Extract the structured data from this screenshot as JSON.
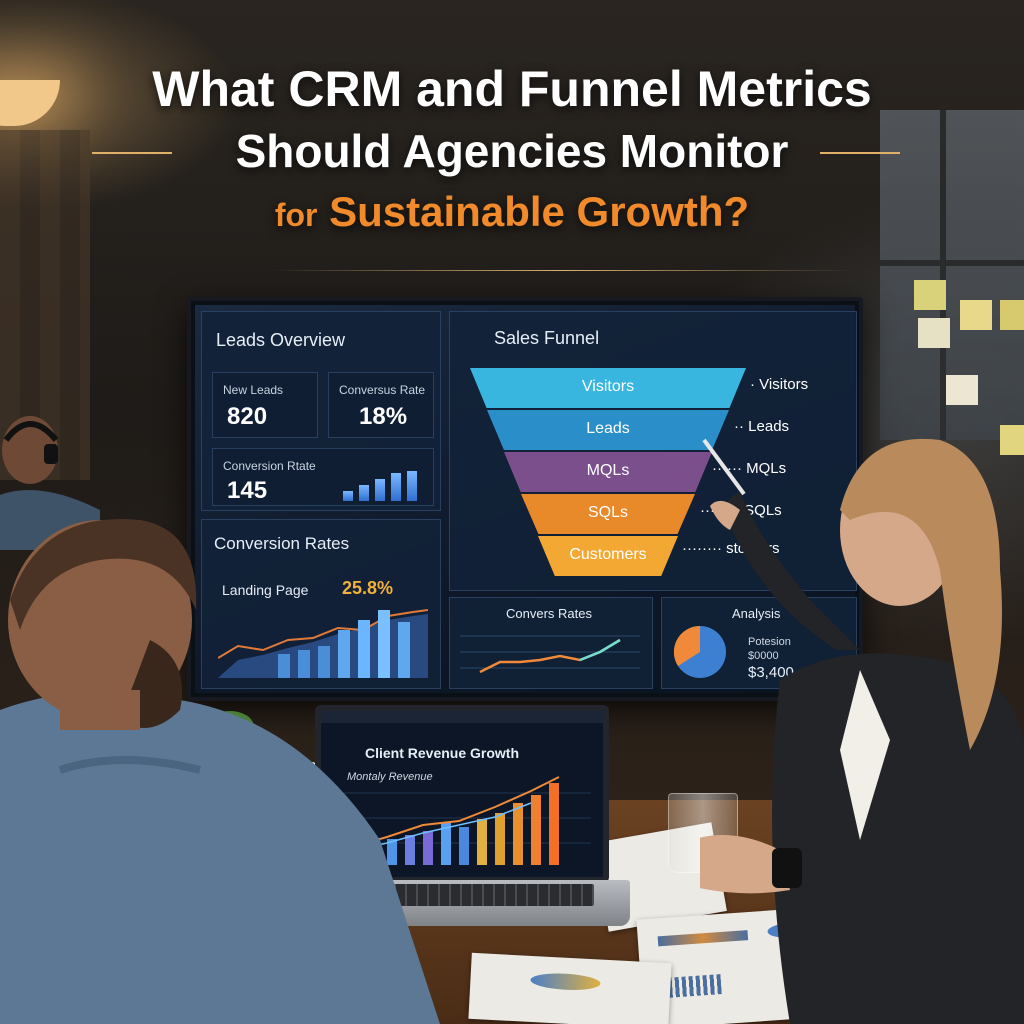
{
  "headline": {
    "line1": "What CRM and Funnel Metrics",
    "line2": "Should Agencies Monitor",
    "line3_prefix": "for",
    "line3_rest": "Sustainable Growth?"
  },
  "dashboard": {
    "leads_overview": {
      "title": "Leads Overview",
      "kpis": [
        {
          "label": "New Leads",
          "value": "820"
        },
        {
          "label": "Conversus Rate",
          "value": "18%"
        },
        {
          "label": "Conversion Rtate",
          "value": "145"
        }
      ]
    },
    "conversion_rates": {
      "title": "Conversion Rates",
      "metric_label": "Landing Page",
      "metric_value": "25.8%"
    },
    "sales_funnel": {
      "title": "Sales Funnel",
      "stages": [
        "Visitors",
        "Leads",
        "MQLs",
        "SQLs",
        "Customers"
      ],
      "side_labels": [
        "Visitors",
        "Leads",
        "MQLs",
        "SQLs",
        "stomers"
      ],
      "colors": [
        "#38b6e0",
        "#2a8fc8",
        "#7a4f8c",
        "#e98a2a",
        "#f2a832"
      ]
    },
    "bottom": {
      "convers_title": "Convers Rates",
      "analysis_title": "Analysis",
      "analysis_text1": "Potesion",
      "analysis_text2": "$0000",
      "analysis_value": "$3,400"
    }
  },
  "laptop": {
    "title": "Client Revenue Growth",
    "subtitle": "Montaly Revenue"
  }
}
